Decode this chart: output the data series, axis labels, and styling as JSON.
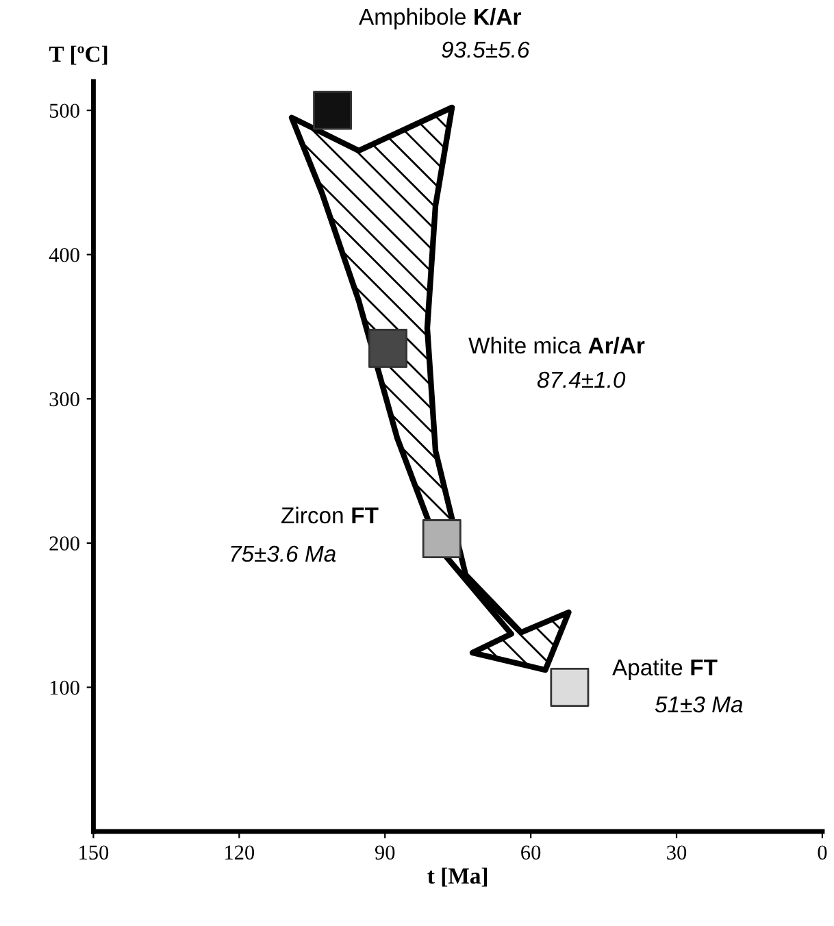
{
  "chart_data": {
    "type": "scatter",
    "xlabel": "t [Ma]",
    "ylabel": "T [ºC]",
    "x": [
      100.8,
      89.4,
      78.3,
      52
    ],
    "values": [
      500,
      335,
      203,
      100
    ],
    "colors": [
      "#111111",
      "#474747",
      "#b0b0b0",
      "#dcdcdc"
    ],
    "marker": "square",
    "xlim": [
      150,
      0
    ],
    "ylim": [
      0,
      520
    ],
    "xticks": [
      150,
      120,
      90,
      60,
      30,
      0
    ],
    "yticks": [
      100,
      200,
      300,
      400,
      500
    ],
    "grid": false,
    "legend": false,
    "annotations": [
      "Amphibole K/Ar",
      "93.5±5.6",
      "White mica Ar/Ar",
      "87.4±1.0",
      "Zircon FT",
      "75±3.6 Ma",
      "Apatite FT",
      "51±3 Ma"
    ]
  }
}
